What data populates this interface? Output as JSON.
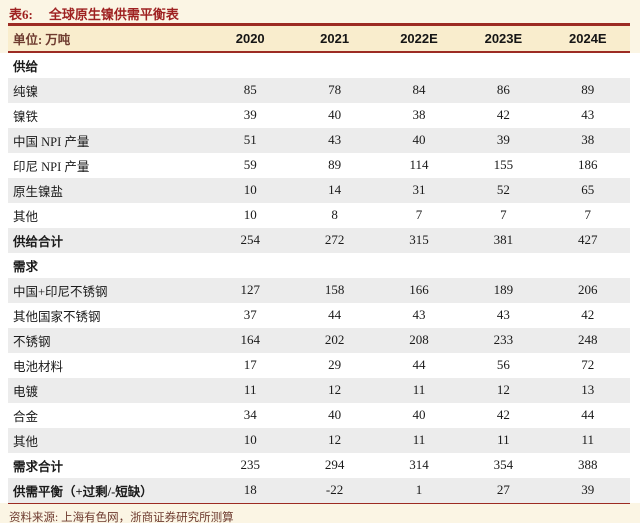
{
  "page": {
    "title_label": "表6:",
    "title": "全球原生镍供需平衡表",
    "source": "资料来源: 上海有色网，浙商证券研究所测算"
  },
  "table": {
    "unit_label": "单位: 万吨",
    "columns": [
      "2020",
      "2021",
      "2022E",
      "2023E",
      "2024E"
    ],
    "rows": [
      {
        "label": "供给",
        "values": [],
        "bold": true,
        "section": true
      },
      {
        "label": "纯镍",
        "values": [
          85,
          78,
          84,
          86,
          89
        ],
        "bold": false,
        "section": false
      },
      {
        "label": "镍铁",
        "values": [
          39,
          40,
          38,
          42,
          43
        ],
        "bold": false,
        "section": false
      },
      {
        "label": "中国 NPI 产量",
        "values": [
          51,
          43,
          40,
          39,
          38
        ],
        "bold": false,
        "section": false
      },
      {
        "label": "印尼 NPI 产量",
        "values": [
          59,
          89,
          114,
          155,
          186
        ],
        "bold": false,
        "section": false
      },
      {
        "label": "原生镍盐",
        "values": [
          10,
          14,
          31,
          52,
          65
        ],
        "bold": false,
        "section": false
      },
      {
        "label": "其他",
        "values": [
          10,
          8,
          7,
          7,
          7
        ],
        "bold": false,
        "section": false
      },
      {
        "label": "供给合计",
        "values": [
          254,
          272,
          315,
          381,
          427
        ],
        "bold": true,
        "section": false
      },
      {
        "label": "需求",
        "values": [],
        "bold": true,
        "section": true
      },
      {
        "label": "中国+印尼不锈钢",
        "values": [
          127,
          158,
          166,
          189,
          206
        ],
        "bold": false,
        "section": false
      },
      {
        "label": "其他国家不锈钢",
        "values": [
          37,
          44,
          43,
          43,
          42
        ],
        "bold": false,
        "section": false
      },
      {
        "label": "不锈钢",
        "values": [
          164,
          202,
          208,
          233,
          248
        ],
        "bold": false,
        "section": false
      },
      {
        "label": "电池材料",
        "values": [
          17,
          29,
          44,
          56,
          72
        ],
        "bold": false,
        "section": false
      },
      {
        "label": "电镀",
        "values": [
          11,
          12,
          11,
          12,
          13
        ],
        "bold": false,
        "section": false
      },
      {
        "label": "合金",
        "values": [
          34,
          40,
          40,
          42,
          44
        ],
        "bold": false,
        "section": false
      },
      {
        "label": "其他",
        "values": [
          10,
          12,
          11,
          11,
          11
        ],
        "bold": false,
        "section": false
      },
      {
        "label": "需求合计",
        "values": [
          235,
          294,
          314,
          354,
          388
        ],
        "bold": true,
        "section": false
      },
      {
        "label": "供需平衡（+过剩/-短缺）",
        "values": [
          18,
          -22,
          1,
          27,
          39
        ],
        "bold": true,
        "section": false
      }
    ]
  },
  "colors": {
    "accent_red": "#9C2B23",
    "title_red": "#9E2121",
    "header_band": "#F9EDCD",
    "stripe_gray": "#ECECEC",
    "footnote_maroon": "#6E3B2F",
    "page_cream": "#FBF5E4"
  },
  "chart_data": {
    "type": "table",
    "title": "表6: 全球原生镍供需平衡表",
    "unit": "万吨",
    "categories": [
      "2020",
      "2021",
      "2022E",
      "2023E",
      "2024E"
    ],
    "series": [
      {
        "name": "纯镍",
        "values": [
          85,
          78,
          84,
          86,
          89
        ]
      },
      {
        "name": "镍铁",
        "values": [
          39,
          40,
          38,
          42,
          43
        ]
      },
      {
        "name": "中国 NPI 产量",
        "values": [
          51,
          43,
          40,
          39,
          38
        ]
      },
      {
        "name": "印尼 NPI 产量",
        "values": [
          59,
          89,
          114,
          155,
          186
        ]
      },
      {
        "name": "原生镍盐",
        "values": [
          10,
          14,
          31,
          52,
          65
        ]
      },
      {
        "name": "其他(供给)",
        "values": [
          10,
          8,
          7,
          7,
          7
        ]
      },
      {
        "name": "供给合计",
        "values": [
          254,
          272,
          315,
          381,
          427
        ]
      },
      {
        "name": "中国+印尼不锈钢",
        "values": [
          127,
          158,
          166,
          189,
          206
        ]
      },
      {
        "name": "其他国家不锈钢",
        "values": [
          37,
          44,
          43,
          43,
          42
        ]
      },
      {
        "name": "不锈钢",
        "values": [
          164,
          202,
          208,
          233,
          248
        ]
      },
      {
        "name": "电池材料",
        "values": [
          17,
          29,
          44,
          56,
          72
        ]
      },
      {
        "name": "电镀",
        "values": [
          11,
          12,
          11,
          12,
          13
        ]
      },
      {
        "name": "合金",
        "values": [
          34,
          40,
          40,
          42,
          44
        ]
      },
      {
        "name": "其他(需求)",
        "values": [
          10,
          12,
          11,
          11,
          11
        ]
      },
      {
        "name": "需求合计",
        "values": [
          235,
          294,
          314,
          354,
          388
        ]
      },
      {
        "name": "供需平衡（+过剩/-短缺）",
        "values": [
          18,
          -22,
          1,
          27,
          39
        ]
      }
    ],
    "source": "资料来源: 上海有色网，浙商证券研究所测算"
  }
}
